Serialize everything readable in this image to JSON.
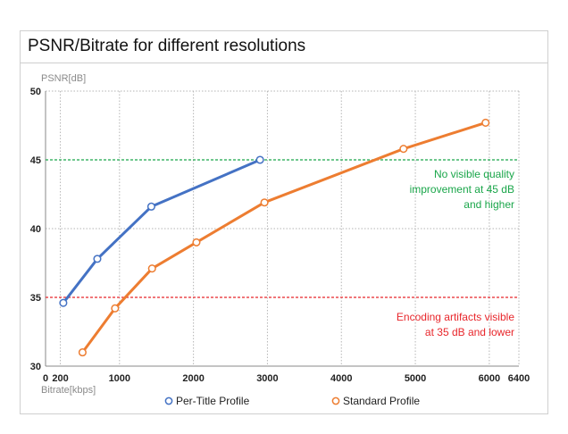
{
  "chart_data": {
    "type": "line",
    "title": "PSNR/Bitrate for different resolutions",
    "ylabel": "PSNR[dB]",
    "xlabel": "Bitrate[kbps]",
    "xlim": [
      0,
      6400
    ],
    "ylim": [
      30,
      50
    ],
    "xticks": [
      0,
      200,
      1000,
      2000,
      3000,
      4000,
      5000,
      6000,
      6400
    ],
    "yticks": [
      30,
      35,
      40,
      45,
      50
    ],
    "series": [
      {
        "name": "Per-Title Profile",
        "color": "#4472c4",
        "points": [
          [
            240,
            34.6
          ],
          [
            700,
            37.8
          ],
          [
            1430,
            41.6
          ],
          [
            2900,
            45.0
          ]
        ]
      },
      {
        "name": "Standard Profile",
        "color": "#ed7d31",
        "points": [
          [
            500,
            31.0
          ],
          [
            940,
            34.2
          ],
          [
            1440,
            37.1
          ],
          [
            2040,
            39.0
          ],
          [
            2960,
            41.9
          ],
          [
            4840,
            45.8
          ],
          [
            5950,
            47.7
          ]
        ]
      }
    ],
    "reference_lines": [
      {
        "value": 45,
        "color": "#1aa64a",
        "label_lines": [
          "No visible quality",
          "improvement at 45 dB",
          "and higher"
        ]
      },
      {
        "value": 35,
        "color": "#e8262b",
        "label_lines": [
          "Encoding artifacts visible",
          "at 35 dB and lower"
        ]
      }
    ],
    "legend_position": "bottom"
  }
}
